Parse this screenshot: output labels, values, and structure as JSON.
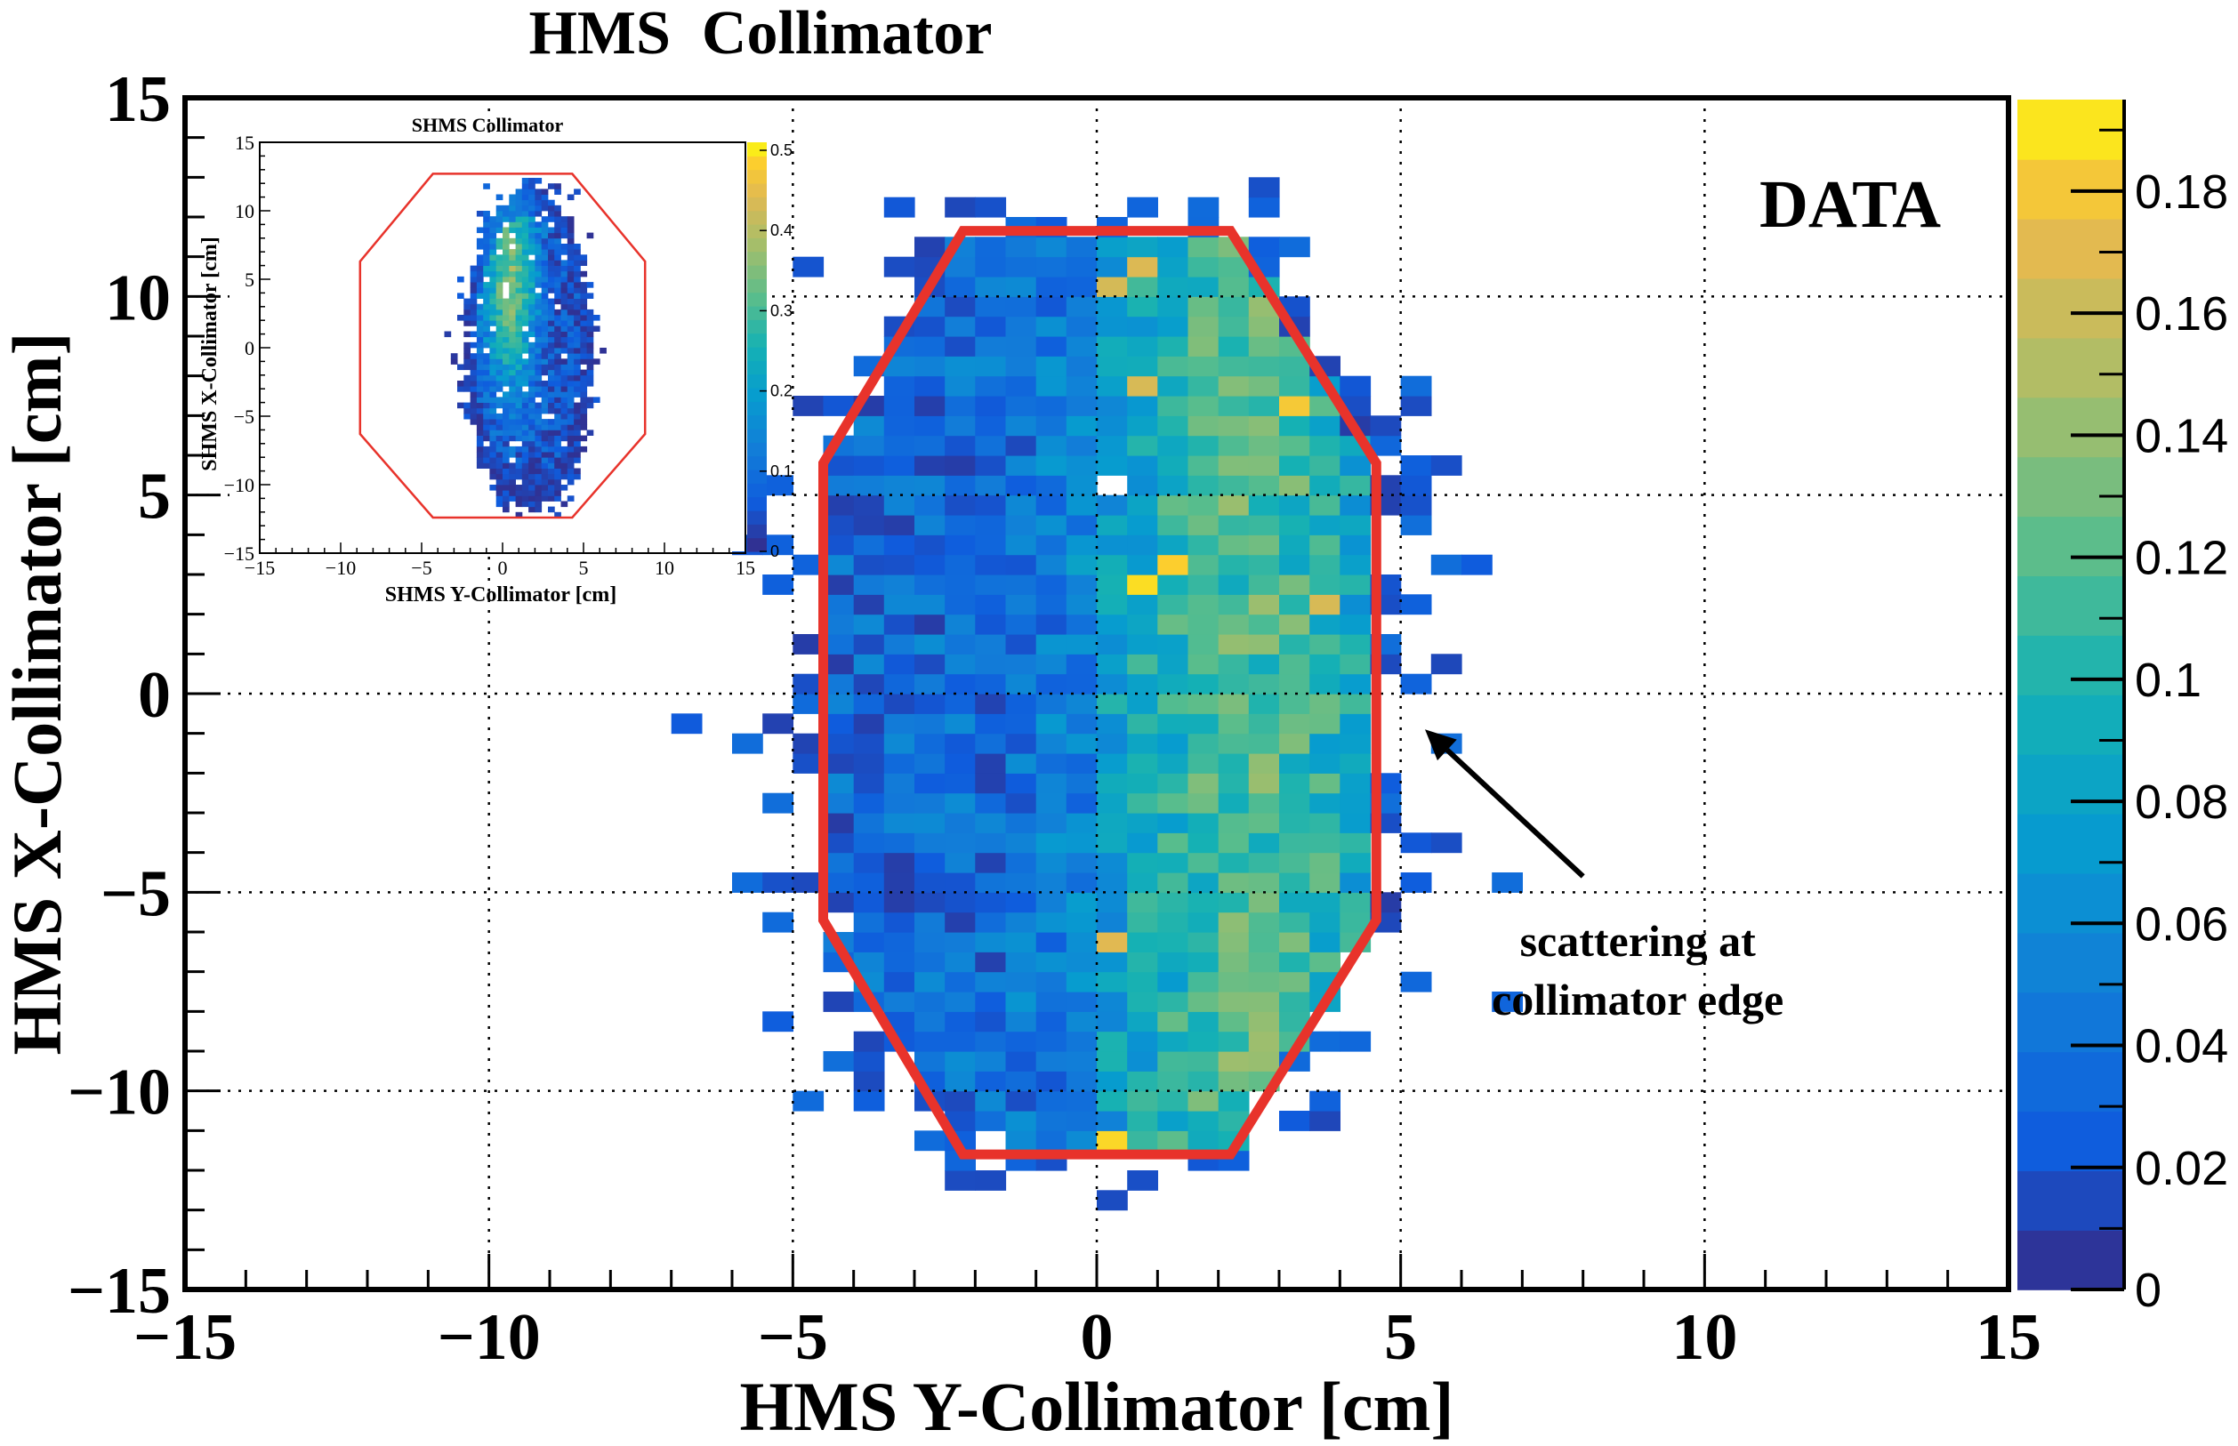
{
  "chart_data": [
    {
      "type": "heatmap",
      "title": "HMS  Collimator",
      "xlabel": "HMS Y-Collimator [cm]",
      "ylabel": "HMS X-Collimator [cm]",
      "xlim": [
        -15,
        15
      ],
      "ylim": [
        -15,
        15
      ],
      "x_ticks": [
        "−15",
        "−10",
        "−5",
        "0",
        "5",
        "10",
        "15"
      ],
      "x_tick_values": [
        -15,
        -10,
        -5,
        0,
        5,
        10,
        15
      ],
      "y_ticks": [
        "−15",
        "−10",
        "−5",
        "0",
        "5",
        "10",
        "15"
      ],
      "y_tick_values": [
        -15,
        -10,
        -5,
        0,
        5,
        10,
        15
      ],
      "grid": true,
      "colorbar": {
        "min": 0,
        "max": 0.195,
        "ticks": [
          "0",
          "0.02",
          "0.04",
          "0.06",
          "0.08",
          "0.1",
          "0.12",
          "0.14",
          "0.16",
          "0.18"
        ],
        "tick_values": [
          0,
          0.02,
          0.04,
          0.06,
          0.08,
          0.1,
          0.12,
          0.14,
          0.16,
          0.18
        ]
      },
      "label": "DATA",
      "annotation": {
        "lines": [
          "scattering at",
          "collimator edge"
        ],
        "arrow_target": [
          5.4,
          -0.9
        ],
        "arrow_tail": [
          8.0,
          -4.6
        ],
        "text_center": [
          8.9,
          -6.6
        ]
      },
      "collimator_outline": [
        [
          -2.2,
          11.65
        ],
        [
          2.2,
          11.65
        ],
        [
          4.6,
          5.8
        ],
        [
          4.6,
          -5.7
        ],
        [
          2.2,
          -11.6
        ],
        [
          -2.2,
          -11.6
        ],
        [
          -4.5,
          -5.7
        ],
        [
          -4.5,
          5.8
        ]
      ],
      "distribution": {
        "x_bin_width": 0.5,
        "y_bin_width": 0.5,
        "core_y_range": [
          -4.5,
          5.0
        ],
        "core_x_range": [
          -12.0,
          12.0
        ],
        "peak_at_y": 2.5,
        "peak_value": 0.19
      }
    },
    {
      "type": "heatmap",
      "title": "SHMS Collimator",
      "xlabel": "SHMS Y-Collimator [cm]",
      "ylabel": "SHMS X-Collimator [cm]",
      "xlim": [
        -15,
        15
      ],
      "ylim": [
        -15,
        15
      ],
      "x_ticks": [
        "−15",
        "−10",
        "−5",
        "0",
        "5",
        "10",
        "15"
      ],
      "x_tick_values": [
        -15,
        -10,
        -5,
        0,
        5,
        10,
        15
      ],
      "y_ticks": [
        "−15",
        "−10",
        "−5",
        "0",
        "5",
        "10",
        "15"
      ],
      "y_tick_values": [
        -15,
        -10,
        -5,
        0,
        5,
        10,
        15
      ],
      "colorbar": {
        "min": 0,
        "max": 0.51,
        "ticks": [
          "0",
          "0.1",
          "0.2",
          "0.3",
          "0.4",
          "0.5"
        ],
        "tick_values": [
          0,
          0.1,
          0.2,
          0.3,
          0.4,
          0.5
        ]
      },
      "collimator_outline": [
        [
          -4.3,
          12.7
        ],
        [
          4.3,
          12.7
        ],
        [
          8.8,
          6.3
        ],
        [
          8.8,
          -6.3
        ],
        [
          4.3,
          -12.4
        ],
        [
          -4.3,
          -12.4
        ],
        [
          -8.8,
          -6.3
        ],
        [
          -8.8,
          6.3
        ]
      ],
      "distribution": {
        "x_bin_width": 0.4,
        "y_bin_width": 0.4,
        "core_y_range": [
          -2.8,
          6.5
        ],
        "core_x_range": [
          -11.5,
          11.5
        ],
        "peak_at_y": 0.5,
        "peak_at_x": 5.0,
        "peak_value": 0.5
      }
    }
  ],
  "colors": {
    "outline": "#e8332b",
    "axis": "#000000",
    "grid": "#000000"
  }
}
